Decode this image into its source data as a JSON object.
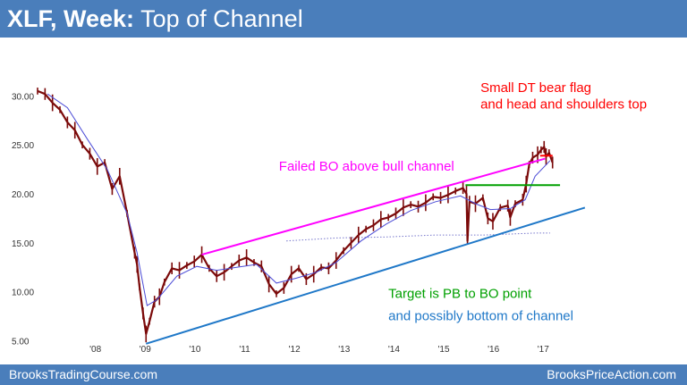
{
  "header": {
    "title_bold": "XLF, Week:",
    "title_rest": "Top of Channel"
  },
  "footer": {
    "left": "BrooksTradingCourse.com",
    "right": "BrooksPriceAction.com"
  },
  "colors": {
    "header_bg": "#4a7ebb",
    "price": "#7b0a0a",
    "moving_average": "#4b4bd6",
    "channel_top": "#ff00ff",
    "channel_bottom": "#1f78c8",
    "breakout_line": "#00a000",
    "bear_flag_mark": "#ff0000",
    "dotted_line": "#7777cc"
  },
  "chart_data": {
    "type": "line",
    "ylim": [
      3.5,
      32.5
    ],
    "y_ticks": [
      {
        "value": 30,
        "label": "30.00"
      },
      {
        "value": 25,
        "label": "25.00"
      },
      {
        "value": 20,
        "label": "20.00"
      },
      {
        "value": 15,
        "label": "15.00"
      },
      {
        "value": 10,
        "label": "10.00"
      },
      {
        "value": 5,
        "label": "5.00"
      }
    ],
    "x_ticks": [
      {
        "value": 2008,
        "label": "'08"
      },
      {
        "value": 2009,
        "label": "'09"
      },
      {
        "value": 2010,
        "label": "'10"
      },
      {
        "value": 2011,
        "label": "'11"
      },
      {
        "value": 2012,
        "label": "'12"
      },
      {
        "value": 2013,
        "label": "'13"
      },
      {
        "value": 2014,
        "label": "'14"
      },
      {
        "value": 2015,
        "label": "'15"
      },
      {
        "value": 2016,
        "label": "'16"
      },
      {
        "value": 2017,
        "label": "'17"
      }
    ],
    "series": [
      {
        "kind": "price",
        "points": [
          [
            2007.0,
            30.5
          ],
          [
            2007.15,
            30.2
          ],
          [
            2007.3,
            29.3
          ],
          [
            2007.45,
            28.6
          ],
          [
            2007.6,
            27.3
          ],
          [
            2007.75,
            26.5
          ],
          [
            2007.9,
            25.0
          ],
          [
            2008.05,
            24.1
          ],
          [
            2008.2,
            22.8
          ],
          [
            2008.35,
            23.2
          ],
          [
            2008.5,
            20.5
          ],
          [
            2008.65,
            21.8
          ],
          [
            2008.8,
            18.0
          ],
          [
            2008.95,
            14.0
          ],
          [
            2009.0,
            12.8
          ],
          [
            2009.05,
            10.5
          ],
          [
            2009.12,
            7.8
          ],
          [
            2009.18,
            5.7
          ],
          [
            2009.25,
            7.0
          ],
          [
            2009.35,
            9.0
          ],
          [
            2009.45,
            9.5
          ],
          [
            2009.55,
            11.0
          ],
          [
            2009.7,
            12.4
          ],
          [
            2009.85,
            12.2
          ],
          [
            2010.0,
            12.7
          ],
          [
            2010.15,
            13.1
          ],
          [
            2010.3,
            13.8
          ],
          [
            2010.45,
            12.4
          ],
          [
            2010.6,
            11.6
          ],
          [
            2010.75,
            12.0
          ],
          [
            2010.9,
            12.6
          ],
          [
            2011.05,
            13.2
          ],
          [
            2011.2,
            13.5
          ],
          [
            2011.35,
            13.0
          ],
          [
            2011.5,
            12.6
          ],
          [
            2011.65,
            10.8
          ],
          [
            2011.8,
            9.8
          ],
          [
            2011.95,
            10.4
          ],
          [
            2012.1,
            11.8
          ],
          [
            2012.25,
            12.4
          ],
          [
            2012.4,
            11.3
          ],
          [
            2012.55,
            11.8
          ],
          [
            2012.7,
            12.5
          ],
          [
            2012.85,
            12.4
          ],
          [
            2013.0,
            13.2
          ],
          [
            2013.15,
            14.2
          ],
          [
            2013.3,
            15.0
          ],
          [
            2013.45,
            15.8
          ],
          [
            2013.6,
            16.4
          ],
          [
            2013.75,
            16.8
          ],
          [
            2013.9,
            17.4
          ],
          [
            2014.05,
            17.6
          ],
          [
            2014.2,
            18.0
          ],
          [
            2014.35,
            18.6
          ],
          [
            2014.5,
            18.9
          ],
          [
            2014.65,
            18.7
          ],
          [
            2014.8,
            19.1
          ],
          [
            2014.95,
            19.7
          ],
          [
            2015.1,
            19.6
          ],
          [
            2015.25,
            19.9
          ],
          [
            2015.4,
            20.3
          ],
          [
            2015.55,
            20.6
          ],
          [
            2015.62,
            20.0
          ],
          [
            2015.64,
            15.2
          ],
          [
            2015.68,
            19.2
          ],
          [
            2015.8,
            19.0
          ],
          [
            2015.95,
            19.6
          ],
          [
            2016.05,
            17.5
          ],
          [
            2016.15,
            17.2
          ],
          [
            2016.3,
            18.6
          ],
          [
            2016.45,
            18.8
          ],
          [
            2016.5,
            17.6
          ],
          [
            2016.6,
            19.0
          ],
          [
            2016.75,
            19.4
          ],
          [
            2016.82,
            21.0
          ],
          [
            2016.88,
            23.0
          ],
          [
            2016.95,
            23.7
          ],
          [
            2017.05,
            24.0
          ],
          [
            2017.12,
            24.5
          ],
          [
            2017.18,
            24.8
          ],
          [
            2017.22,
            23.8
          ],
          [
            2017.28,
            24.2
          ],
          [
            2017.35,
            23.2
          ]
        ]
      },
      {
        "kind": "moving_average",
        "points": [
          [
            2007.2,
            30.2
          ],
          [
            2007.6,
            28.8
          ],
          [
            2008.0,
            25.6
          ],
          [
            2008.4,
            22.5
          ],
          [
            2008.8,
            18.0
          ],
          [
            2009.0,
            14.0
          ],
          [
            2009.2,
            8.6
          ],
          [
            2009.4,
            9.2
          ],
          [
            2009.8,
            11.6
          ],
          [
            2010.2,
            12.6
          ],
          [
            2010.6,
            12.2
          ],
          [
            2011.0,
            12.5
          ],
          [
            2011.4,
            12.8
          ],
          [
            2011.8,
            10.9
          ],
          [
            2012.2,
            11.4
          ],
          [
            2012.6,
            12.0
          ],
          [
            2013.0,
            13.0
          ],
          [
            2013.5,
            15.2
          ],
          [
            2014.0,
            16.9
          ],
          [
            2014.5,
            18.3
          ],
          [
            2015.0,
            19.2
          ],
          [
            2015.5,
            19.8
          ],
          [
            2015.8,
            19.0
          ],
          [
            2016.1,
            18.4
          ],
          [
            2016.5,
            18.5
          ],
          [
            2016.8,
            19.4
          ],
          [
            2017.0,
            21.8
          ],
          [
            2017.3,
            23.4
          ]
        ]
      },
      {
        "kind": "dotted_average",
        "points": [
          [
            2012.0,
            15.2
          ],
          [
            2013.0,
            15.5
          ],
          [
            2014.0,
            15.6
          ],
          [
            2015.0,
            15.8
          ],
          [
            2016.0,
            15.8
          ],
          [
            2017.0,
            16.0
          ],
          [
            2017.3,
            16.0
          ]
        ]
      }
    ],
    "lines": [
      {
        "kind": "channel_top",
        "from": [
          2010.3,
          13.8
        ],
        "to": [
          2017.2,
          23.6
        ]
      },
      {
        "kind": "channel_bottom",
        "from": [
          2009.18,
          4.7
        ],
        "to": [
          2018.0,
          18.6
        ]
      },
      {
        "kind": "breakout_level",
        "from": [
          2015.6,
          20.9
        ],
        "to": [
          2017.5,
          20.9
        ]
      },
      {
        "kind": "bear_flag_mark",
        "from": [
          2017.1,
          23.9
        ],
        "to": [
          2017.35,
          23.9
        ]
      }
    ],
    "annotations": [
      {
        "text": "Small DT bear flag",
        "color": "#ff0000",
        "at": [
          2015.9,
          30.4
        ]
      },
      {
        "text": "and head and shoulders top",
        "color": "#ff0000",
        "at": [
          2015.9,
          28.7
        ]
      },
      {
        "text": "Failed BO above bull channel",
        "color": "#ff00ff",
        "at": [
          2011.85,
          22.4
        ]
      },
      {
        "text": "Target is PB to BO point",
        "color": "#00a000",
        "at": [
          2014.05,
          9.4
        ]
      },
      {
        "text": "and possibly bottom of channel",
        "color": "#1f78c8",
        "at": [
          2014.05,
          7.1
        ]
      }
    ]
  }
}
